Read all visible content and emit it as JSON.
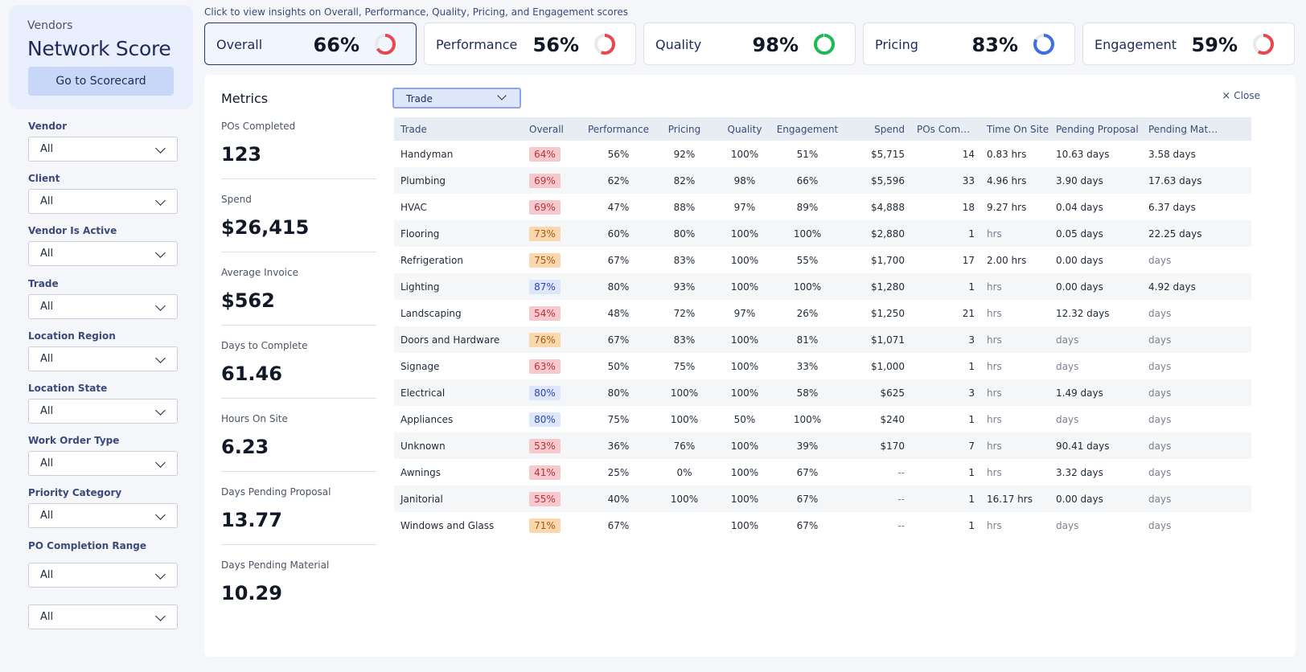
{
  "sidebar": {
    "kicker": "Vendors",
    "title": "Network Score",
    "scorecard_button": "Go to Scorecard",
    "filters": [
      {
        "label": "Vendor",
        "value": "All"
      },
      {
        "label": "Client",
        "value": "All"
      },
      {
        "label": "Vendor Is Active",
        "value": "All"
      },
      {
        "label": "Trade",
        "value": "All"
      },
      {
        "label": "Location Region",
        "value": "All"
      },
      {
        "label": "Location State",
        "value": "All"
      },
      {
        "label": "Work Order Type",
        "value": "All"
      },
      {
        "label": "Priority Category",
        "value": "All"
      },
      {
        "label": "PO Completion Range",
        "value": "All"
      },
      {
        "label": "",
        "value": "All"
      }
    ]
  },
  "header": {
    "hint": "Click to view insights on Overall, Performance, Quality, Pricing, and Engagement scores",
    "tabs": [
      {
        "label": "Overall",
        "value": "66%",
        "score": 66,
        "color": "#e5484d"
      },
      {
        "label": "Performance",
        "value": "56%",
        "score": 56,
        "color": "#e5484d"
      },
      {
        "label": "Quality",
        "value": "98%",
        "score": 98,
        "color": "#1db954"
      },
      {
        "label": "Pricing",
        "value": "83%",
        "score": 83,
        "color": "#3e6fe8"
      },
      {
        "label": "Engagement",
        "value": "59%",
        "score": 59,
        "color": "#e5484d"
      }
    ]
  },
  "metrics": {
    "title": "Metrics",
    "items": [
      {
        "label": "POs Completed",
        "value": "123"
      },
      {
        "label": "Spend",
        "value": "$26,415"
      },
      {
        "label": "Average Invoice",
        "value": "$562"
      },
      {
        "label": "Days to Complete",
        "value": "61.46"
      },
      {
        "label": "Hours On Site",
        "value": "6.23"
      },
      {
        "label": "Days Pending Proposal",
        "value": "13.77"
      },
      {
        "label": "Days Pending Material",
        "value": "10.29"
      }
    ]
  },
  "table": {
    "group_by": "Trade",
    "close_label": "Close",
    "columns": {
      "trade": "Trade",
      "overall": "Overall",
      "performance": "Performance",
      "pricing": "Pricing",
      "quality": "Quality",
      "engagement": "Engagement",
      "spend": "Spend",
      "pos": "POs Comple...",
      "time_on_site": "Time On Site",
      "pending_proposal": "Pending Proposal",
      "pending_materials": "Pending Materials"
    },
    "rows": [
      {
        "trade": "Handyman",
        "overall": "64%",
        "tone": "red",
        "performance": "56%",
        "pricing": "92%",
        "quality": "100%",
        "engagement": "51%",
        "spend": "$5,715",
        "pos": "14",
        "tos": "0.83 hrs",
        "pp": "10.63 days",
        "pm": "3.58 days"
      },
      {
        "trade": "Plumbing",
        "overall": "69%",
        "tone": "red",
        "performance": "62%",
        "pricing": "82%",
        "quality": "98%",
        "engagement": "66%",
        "spend": "$5,596",
        "pos": "33",
        "tos": "4.96 hrs",
        "pp": "3.90 days",
        "pm": "17.63 days"
      },
      {
        "trade": "HVAC",
        "overall": "69%",
        "tone": "red",
        "performance": "47%",
        "pricing": "88%",
        "quality": "97%",
        "engagement": "89%",
        "spend": "$4,888",
        "pos": "18",
        "tos": "9.27 hrs",
        "pp": "0.04 days",
        "pm": "6.37 days"
      },
      {
        "trade": "Flooring",
        "overall": "73%",
        "tone": "orange",
        "performance": "60%",
        "pricing": "80%",
        "quality": "100%",
        "engagement": "100%",
        "spend": "$2,880",
        "pos": "1",
        "tos": "hrs",
        "pp": "0.05 days",
        "pm": "22.25 days"
      },
      {
        "trade": "Refrigeration",
        "overall": "75%",
        "tone": "orange",
        "performance": "67%",
        "pricing": "83%",
        "quality": "100%",
        "engagement": "55%",
        "spend": "$1,700",
        "pos": "17",
        "tos": "2.00 hrs",
        "pp": "0.00 days",
        "pm": "days"
      },
      {
        "trade": "Lighting",
        "overall": "87%",
        "tone": "blue",
        "performance": "80%",
        "pricing": "93%",
        "quality": "100%",
        "engagement": "100%",
        "spend": "$1,280",
        "pos": "1",
        "tos": "hrs",
        "pp": "0.00 days",
        "pm": "4.92 days"
      },
      {
        "trade": "Landscaping",
        "overall": "54%",
        "tone": "red",
        "performance": "48%",
        "pricing": "72%",
        "quality": "97%",
        "engagement": "26%",
        "spend": "$1,250",
        "pos": "21",
        "tos": "hrs",
        "pp": "12.32 days",
        "pm": "days"
      },
      {
        "trade": "Doors and Hardware",
        "overall": "76%",
        "tone": "orange",
        "performance": "67%",
        "pricing": "83%",
        "quality": "100%",
        "engagement": "81%",
        "spend": "$1,071",
        "pos": "3",
        "tos": "hrs",
        "pp": "days",
        "pm": "days"
      },
      {
        "trade": "Signage",
        "overall": "63%",
        "tone": "red",
        "performance": "50%",
        "pricing": "75%",
        "quality": "100%",
        "engagement": "33%",
        "spend": "$1,000",
        "pos": "1",
        "tos": "hrs",
        "pp": "days",
        "pm": "days"
      },
      {
        "trade": "Electrical",
        "overall": "80%",
        "tone": "blue",
        "performance": "80%",
        "pricing": "100%",
        "quality": "100%",
        "engagement": "58%",
        "spend": "$625",
        "pos": "3",
        "tos": "hrs",
        "pp": "1.49 days",
        "pm": "days"
      },
      {
        "trade": "Appliances",
        "overall": "80%",
        "tone": "blue",
        "performance": "75%",
        "pricing": "100%",
        "quality": "50%",
        "engagement": "100%",
        "spend": "$240",
        "pos": "1",
        "tos": "hrs",
        "pp": "days",
        "pm": "days"
      },
      {
        "trade": "Unknown",
        "overall": "53%",
        "tone": "red",
        "performance": "36%",
        "pricing": "76%",
        "quality": "100%",
        "engagement": "39%",
        "spend": "$170",
        "pos": "7",
        "tos": "hrs",
        "pp": "90.41 days",
        "pm": "days"
      },
      {
        "trade": "Awnings",
        "overall": "41%",
        "tone": "red",
        "performance": "25%",
        "pricing": "0%",
        "quality": "100%",
        "engagement": "67%",
        "spend": "--",
        "pos": "1",
        "tos": "hrs",
        "pp": "3.32 days",
        "pm": "days"
      },
      {
        "trade": "Janitorial",
        "overall": "55%",
        "tone": "red",
        "performance": "40%",
        "pricing": "100%",
        "quality": "100%",
        "engagement": "67%",
        "spend": "--",
        "pos": "1",
        "tos": "16.17 hrs",
        "pp": "0.00 days",
        "pm": "days"
      },
      {
        "trade": "Windows and Glass",
        "overall": "71%",
        "tone": "orange",
        "performance": "67%",
        "pricing": "",
        "quality": "100%",
        "engagement": "67%",
        "spend": "--",
        "pos": "1",
        "tos": "hrs",
        "pp": "days",
        "pm": "days"
      }
    ]
  }
}
